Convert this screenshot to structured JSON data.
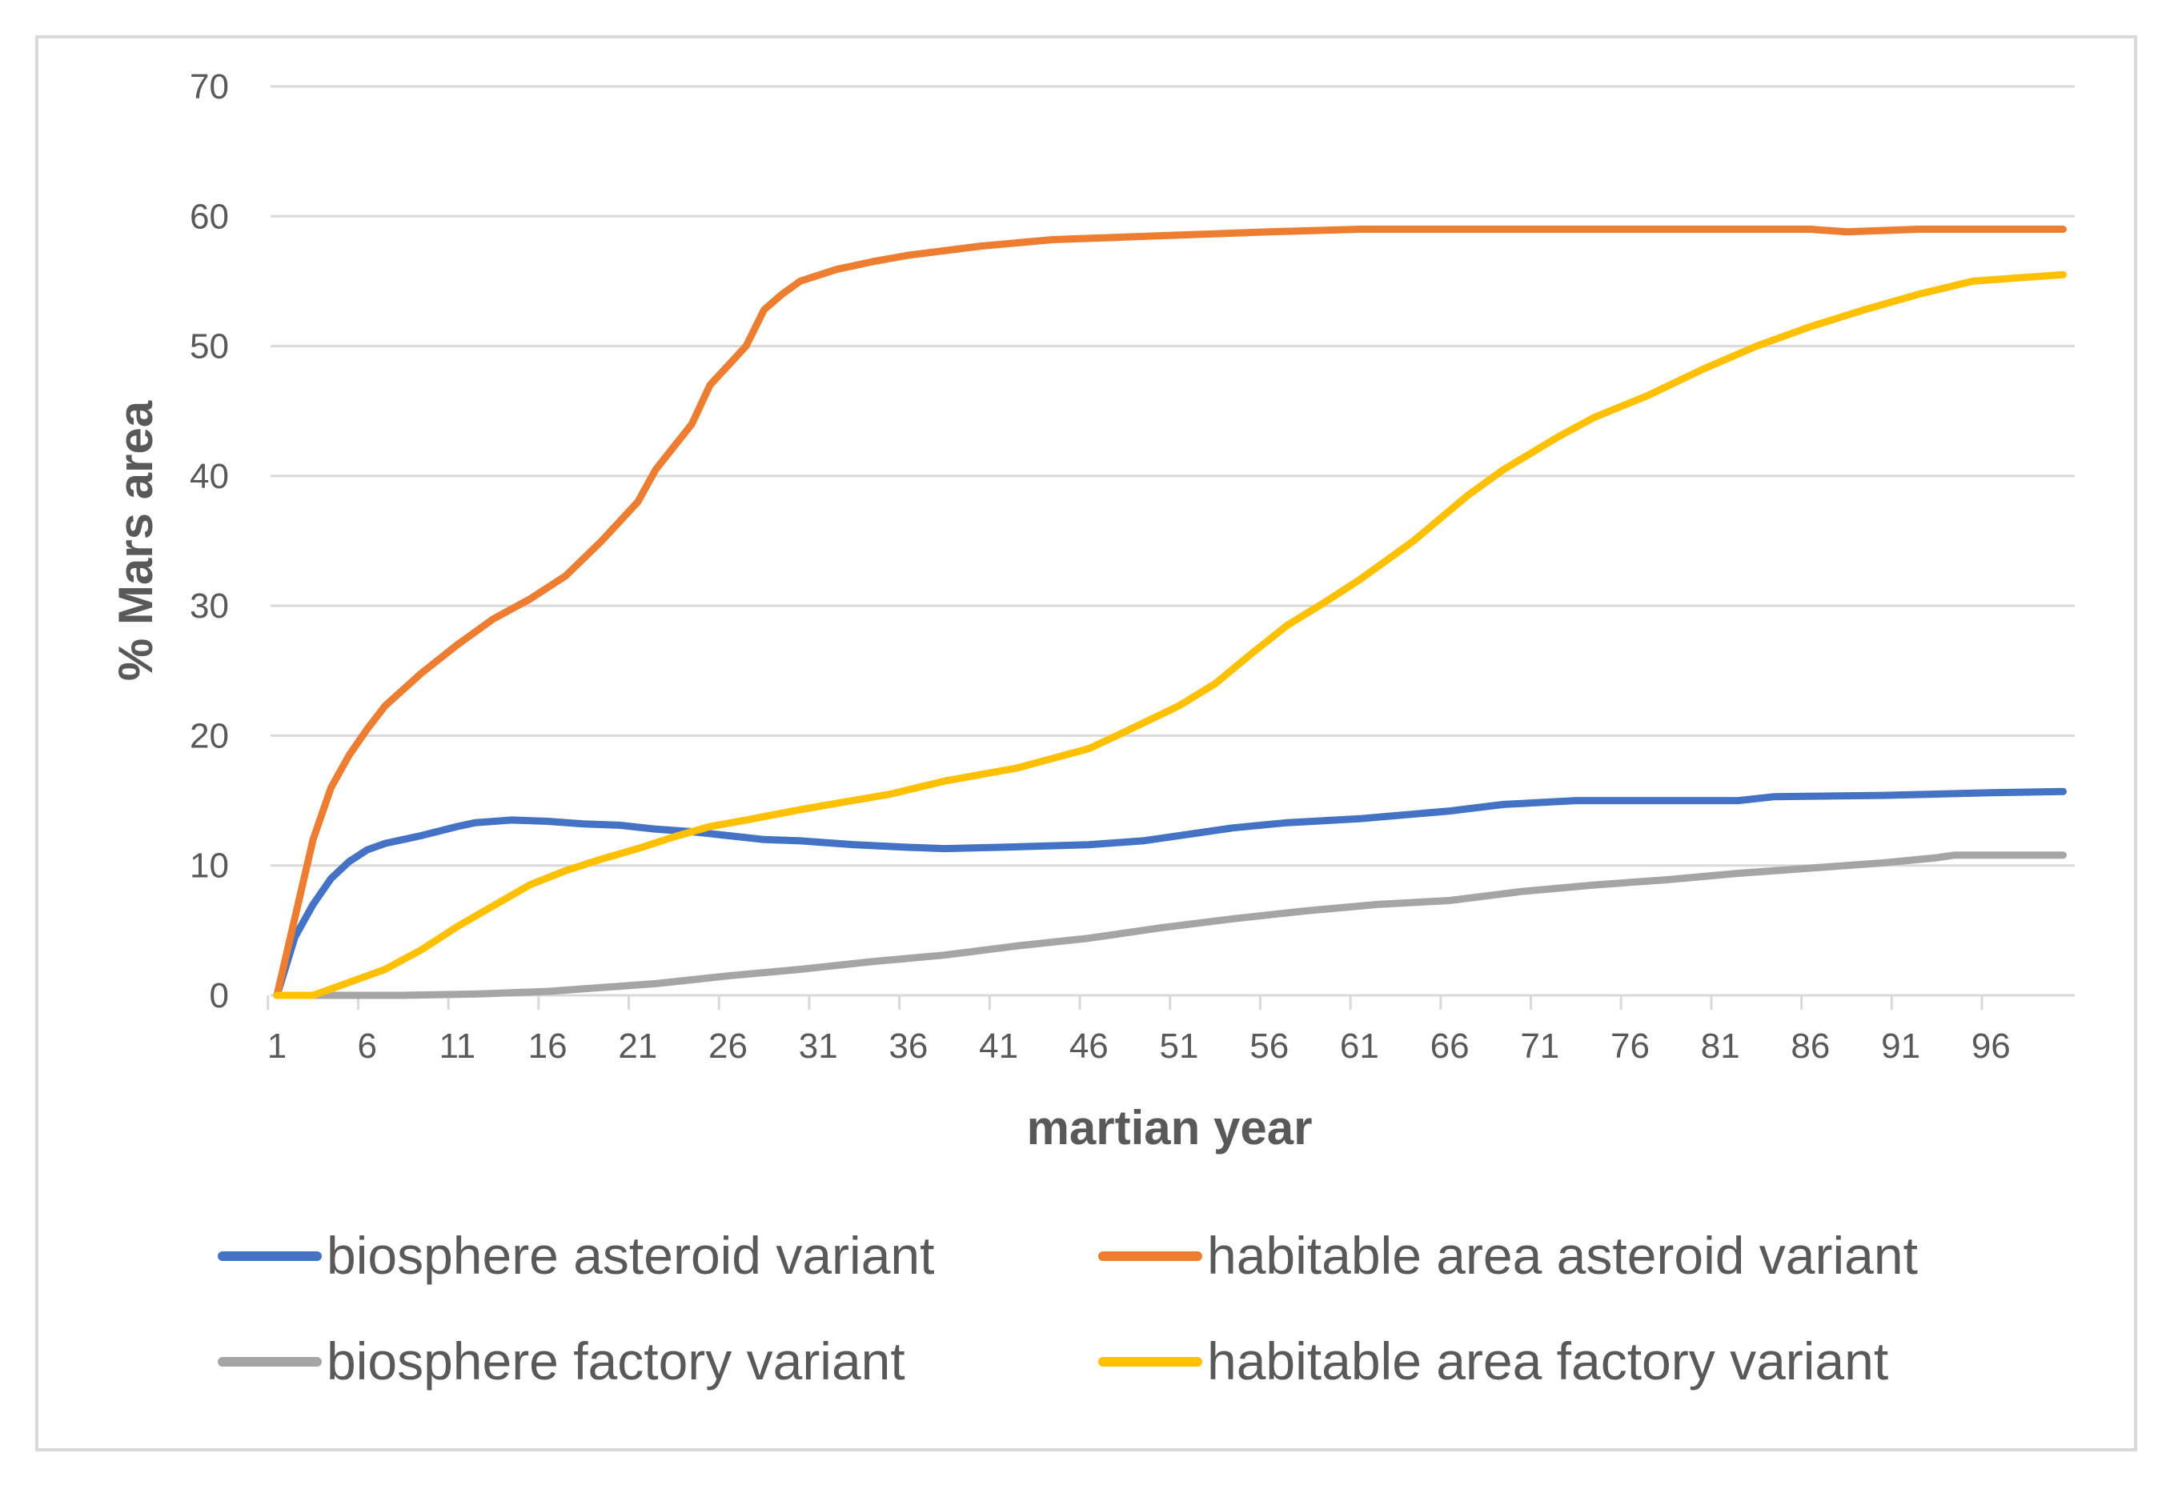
{
  "chart_data": {
    "type": "line",
    "title": "",
    "xlabel": "martian year",
    "ylabel": "% Mars area",
    "ylim": [
      0,
      70
    ],
    "yticks": [
      0,
      10,
      20,
      30,
      40,
      50,
      60,
      70
    ],
    "xlim": [
      1,
      100
    ],
    "xtick_labels": [
      1,
      6,
      11,
      16,
      21,
      26,
      31,
      36,
      41,
      46,
      51,
      56,
      61,
      66,
      71,
      76,
      81,
      86,
      91,
      96
    ],
    "grid": true,
    "legend_position": "bottom",
    "series": [
      {
        "name": "biosphere asteroid variant",
        "color": "#4472C4",
        "points": [
          [
            1,
            0
          ],
          [
            2,
            4.5
          ],
          [
            3,
            7
          ],
          [
            4,
            9
          ],
          [
            5,
            10.3
          ],
          [
            6,
            11.2
          ],
          [
            7,
            11.7
          ],
          [
            9,
            12.3
          ],
          [
            11,
            13
          ],
          [
            12,
            13.3
          ],
          [
            14,
            13.5
          ],
          [
            16,
            13.4
          ],
          [
            18,
            13.2
          ],
          [
            20,
            13.1
          ],
          [
            22,
            12.8
          ],
          [
            24,
            12.6
          ],
          [
            26,
            12.3
          ],
          [
            28,
            12
          ],
          [
            30,
            11.9
          ],
          [
            33,
            11.6
          ],
          [
            36,
            11.4
          ],
          [
            38,
            11.3
          ],
          [
            41,
            11.4
          ],
          [
            46,
            11.6
          ],
          [
            49,
            11.9
          ],
          [
            51,
            12.3
          ],
          [
            54,
            12.9
          ],
          [
            57,
            13.3
          ],
          [
            61,
            13.6
          ],
          [
            66,
            14.2
          ],
          [
            69,
            14.7
          ],
          [
            73,
            15
          ],
          [
            82,
            15
          ],
          [
            84,
            15.3
          ],
          [
            90,
            15.4
          ],
          [
            96,
            15.6
          ],
          [
            100,
            15.7
          ]
        ]
      },
      {
        "name": "habitable area asteroid variant",
        "color": "#ED7D31",
        "points": [
          [
            1,
            0
          ],
          [
            2,
            6
          ],
          [
            3,
            12
          ],
          [
            4,
            16
          ],
          [
            5,
            18.5
          ],
          [
            6,
            20.5
          ],
          [
            7,
            22.3
          ],
          [
            9,
            24.8
          ],
          [
            11,
            27
          ],
          [
            13,
            29
          ],
          [
            15,
            30.5
          ],
          [
            17,
            32.3
          ],
          [
            19,
            35
          ],
          [
            21,
            38
          ],
          [
            22,
            40.5
          ],
          [
            24,
            44
          ],
          [
            25,
            47
          ],
          [
            27,
            50
          ],
          [
            28,
            52.8
          ],
          [
            29,
            54
          ],
          [
            30,
            55
          ],
          [
            32,
            55.9
          ],
          [
            34,
            56.5
          ],
          [
            36,
            57
          ],
          [
            40,
            57.7
          ],
          [
            44,
            58.2
          ],
          [
            48,
            58.4
          ],
          [
            52,
            58.6
          ],
          [
            56,
            58.8
          ],
          [
            61,
            59
          ],
          [
            86,
            59
          ],
          [
            88,
            58.8
          ],
          [
            90,
            58.9
          ],
          [
            92,
            59
          ],
          [
            100,
            59
          ]
        ]
      },
      {
        "name": "biosphere factory variant",
        "color": "#A5A5A5",
        "points": [
          [
            1,
            0
          ],
          [
            4,
            0
          ],
          [
            8,
            0
          ],
          [
            12,
            0.1
          ],
          [
            16,
            0.3
          ],
          [
            20,
            0.7
          ],
          [
            22,
            0.9
          ],
          [
            26,
            1.5
          ],
          [
            30,
            2
          ],
          [
            34,
            2.6
          ],
          [
            38,
            3.1
          ],
          [
            42,
            3.8
          ],
          [
            46,
            4.4
          ],
          [
            50,
            5.2
          ],
          [
            54,
            5.9
          ],
          [
            58,
            6.5
          ],
          [
            62,
            7
          ],
          [
            66,
            7.3
          ],
          [
            70,
            8
          ],
          [
            74,
            8.5
          ],
          [
            78,
            8.9
          ],
          [
            82,
            9.4
          ],
          [
            86,
            9.8
          ],
          [
            90,
            10.2
          ],
          [
            93,
            10.6
          ],
          [
            94,
            10.8
          ],
          [
            100,
            10.8
          ]
        ]
      },
      {
        "name": "habitable area factory variant",
        "color": "#FFC000",
        "points": [
          [
            1,
            0
          ],
          [
            3,
            0
          ],
          [
            5,
            1
          ],
          [
            7,
            2
          ],
          [
            9,
            3.5
          ],
          [
            11,
            5.3
          ],
          [
            13,
            6.9
          ],
          [
            15,
            8.5
          ],
          [
            17,
            9.6
          ],
          [
            19,
            10.5
          ],
          [
            21,
            11.3
          ],
          [
            23,
            12.2
          ],
          [
            25,
            13
          ],
          [
            27,
            13.5
          ],
          [
            30,
            14.3
          ],
          [
            35,
            15.5
          ],
          [
            38,
            16.5
          ],
          [
            42,
            17.5
          ],
          [
            46,
            19
          ],
          [
            48,
            20.3
          ],
          [
            51,
            22.3
          ],
          [
            53,
            24
          ],
          [
            55,
            26.3
          ],
          [
            57,
            28.5
          ],
          [
            59,
            30.2
          ],
          [
            61,
            32
          ],
          [
            64,
            35
          ],
          [
            67,
            38.5
          ],
          [
            69,
            40.5
          ],
          [
            72,
            43
          ],
          [
            74,
            44.5
          ],
          [
            77,
            46.2
          ],
          [
            80,
            48.2
          ],
          [
            83,
            50
          ],
          [
            86,
            51.5
          ],
          [
            89,
            52.8
          ],
          [
            92,
            54
          ],
          [
            95,
            55
          ],
          [
            100,
            55.5
          ]
        ]
      }
    ]
  }
}
